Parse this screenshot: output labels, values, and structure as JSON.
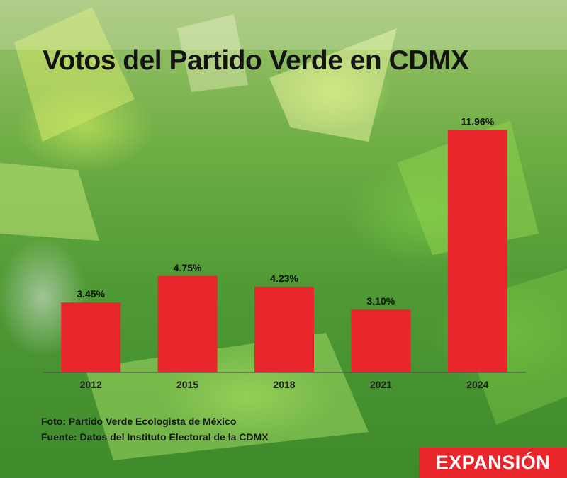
{
  "title": "Votos del Partido Verde en CDMX",
  "credits": {
    "photo": "Foto: Partido Verde Ecologista de México",
    "source": "Fuente: Datos del Instituto Electoral de la CDMX"
  },
  "brand": "EXPANSIÓN",
  "colors": {
    "bar": "#e8262b",
    "axis": "#4a4a4a",
    "brand_bg": "#e8262b"
  },
  "chart_data": {
    "type": "bar",
    "title": "Votos del Partido Verde en CDMX",
    "xlabel": "",
    "ylabel": "",
    "categories": [
      "2012",
      "2015",
      "2018",
      "2021",
      "2024"
    ],
    "values": [
      3.45,
      4.75,
      4.23,
      3.1,
      11.96
    ],
    "data_labels": [
      "3.45%",
      "4.75%",
      "4.23%",
      "3.10%",
      "11.96%"
    ],
    "unit": "%",
    "ylim": [
      0,
      12.5
    ],
    "grid": false,
    "legend": "none"
  }
}
